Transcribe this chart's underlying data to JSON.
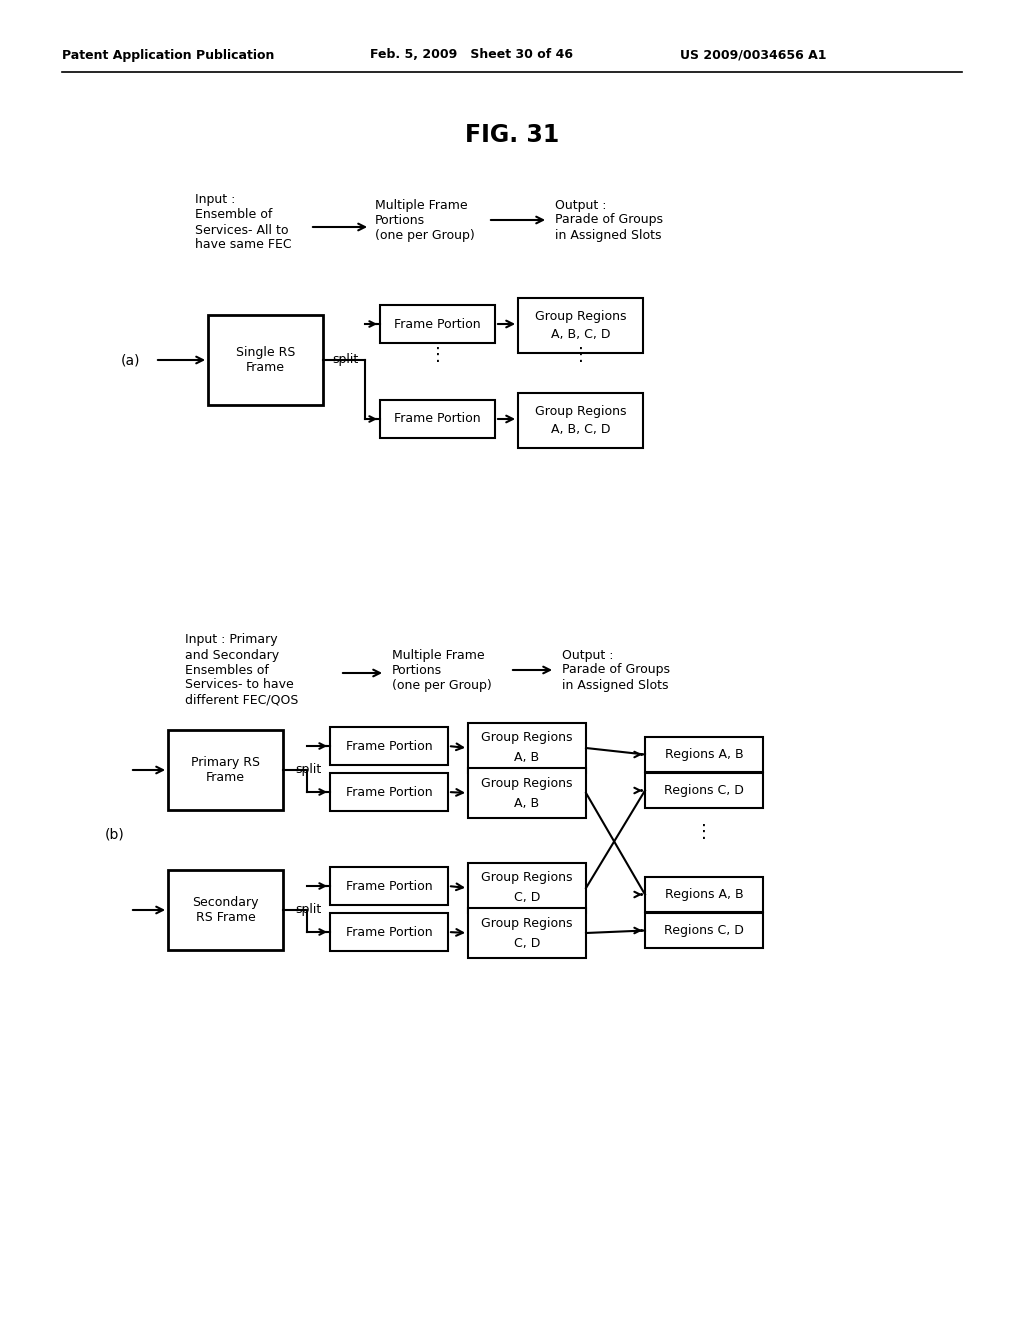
{
  "title": "FIG. 31",
  "header_left": "Patent Application Publication",
  "header_mid": "Feb. 5, 2009   Sheet 30 of 46",
  "header_right": "US 2009/0034656 A1",
  "bg_color": "#ffffff",
  "text_color": "#000000",
  "fig_width": 10.24,
  "fig_height": 13.2,
  "dpi": 100
}
